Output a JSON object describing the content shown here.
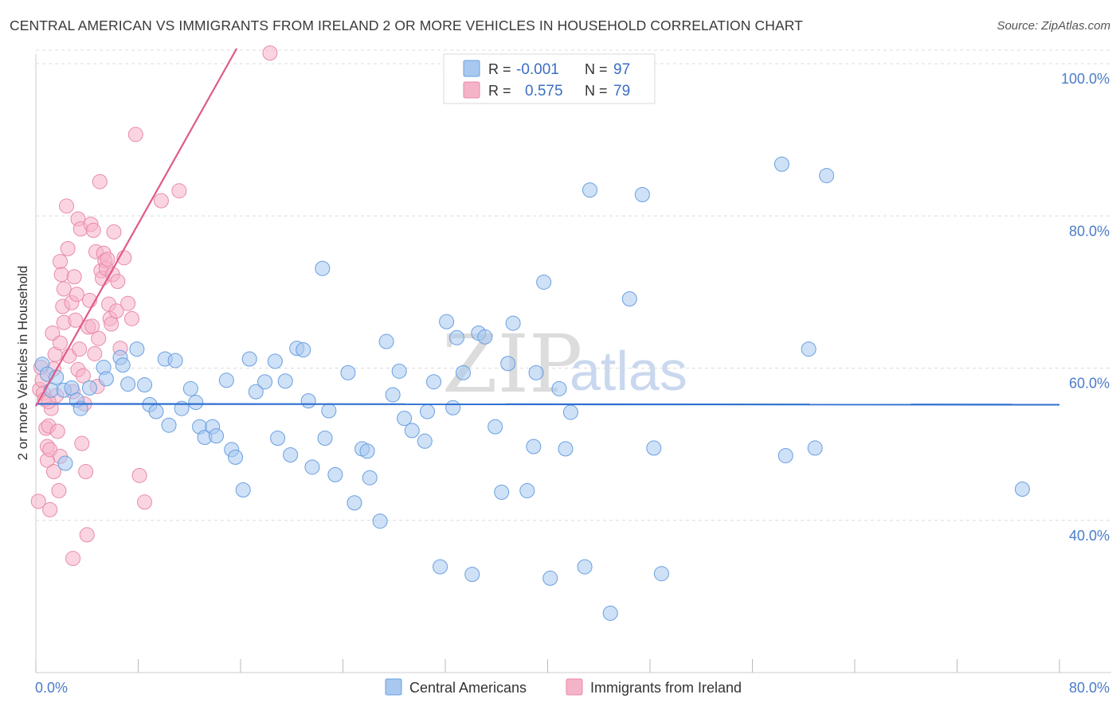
{
  "title": "CENTRAL AMERICAN VS IMMIGRANTS FROM IRELAND 2 OR MORE VEHICLES IN HOUSEHOLD CORRELATION CHART",
  "source": "Source: ZipAtlas.com",
  "watermark": {
    "zip": "ZIP",
    "atlas": "atlas"
  },
  "legend": {
    "rows": [
      {
        "r_label": "R =",
        "r_value": "-0.001",
        "n_label": "N =",
        "n_value": "97",
        "color": "#a8c8f0"
      },
      {
        "r_label": "R =",
        "r_value": "0.575",
        "n_label": "N =",
        "n_value": "79",
        "color": "#f5b3c8"
      }
    ]
  },
  "bottom_legend": [
    "Central Americans",
    "Immigrants from Ireland"
  ],
  "chart_data": {
    "type": "scatter",
    "xlabel": "",
    "ylabel": "2 or more Vehicles in Household",
    "xlim": [
      0,
      80
    ],
    "ylim": [
      20,
      100
    ],
    "x_tick_labels": [
      "0.0%",
      "80.0%"
    ],
    "y_ticks": [
      40,
      60,
      80,
      100
    ],
    "y_tick_labels": [
      "40.0%",
      "60.0%",
      "80.0%",
      "100.0%"
    ],
    "grid": true,
    "series": [
      {
        "name": "Central Americans",
        "color": "#a8c8f0",
        "stroke": "#6a9fe0",
        "trend": {
          "x": [
            0,
            80
          ],
          "y": [
            55.3,
            55.2
          ],
          "color": "#2f6fcf"
        },
        "points": [
          [
            0.5,
            60.5
          ],
          [
            0.9,
            59.2
          ],
          [
            1.2,
            57.1
          ],
          [
            1.6,
            58.8
          ],
          [
            2.2,
            57.1
          ],
          [
            2.3,
            47.5
          ],
          [
            2.8,
            57.4
          ],
          [
            3.2,
            55.8
          ],
          [
            3.5,
            54.7
          ],
          [
            4.2,
            57.4
          ],
          [
            5.3,
            60.1
          ],
          [
            5.5,
            58.6
          ],
          [
            6.6,
            61.4
          ],
          [
            6.8,
            60.4
          ],
          [
            7.2,
            57.9
          ],
          [
            7.9,
            62.5
          ],
          [
            8.5,
            57.8
          ],
          [
            8.9,
            55.2
          ],
          [
            9.4,
            54.3
          ],
          [
            10.1,
            61.2
          ],
          [
            10.4,
            52.5
          ],
          [
            10.9,
            61.0
          ],
          [
            11.4,
            54.7
          ],
          [
            12.1,
            57.3
          ],
          [
            12.5,
            55.5
          ],
          [
            12.8,
            52.3
          ],
          [
            13.2,
            50.9
          ],
          [
            13.8,
            52.3
          ],
          [
            14.1,
            51.1
          ],
          [
            14.9,
            58.4
          ],
          [
            15.3,
            49.3
          ],
          [
            15.6,
            48.3
          ],
          [
            16.2,
            44.0
          ],
          [
            16.7,
            61.2
          ],
          [
            17.2,
            56.9
          ],
          [
            17.9,
            58.2
          ],
          [
            18.7,
            60.9
          ],
          [
            18.9,
            50.8
          ],
          [
            19.5,
            58.3
          ],
          [
            19.9,
            48.6
          ],
          [
            20.4,
            62.6
          ],
          [
            20.9,
            62.4
          ],
          [
            21.3,
            55.7
          ],
          [
            21.6,
            47.0
          ],
          [
            22.4,
            73.1
          ],
          [
            22.6,
            50.8
          ],
          [
            22.9,
            54.4
          ],
          [
            23.4,
            46.0
          ],
          [
            24.4,
            59.4
          ],
          [
            24.9,
            42.3
          ],
          [
            25.5,
            49.4
          ],
          [
            25.9,
            49.1
          ],
          [
            26.1,
            45.6
          ],
          [
            26.9,
            39.9
          ],
          [
            27.4,
            63.5
          ],
          [
            27.9,
            56.5
          ],
          [
            28.4,
            59.6
          ],
          [
            28.8,
            53.4
          ],
          [
            29.4,
            51.8
          ],
          [
            30.4,
            50.4
          ],
          [
            30.6,
            54.3
          ],
          [
            31.1,
            58.2
          ],
          [
            31.6,
            33.9
          ],
          [
            32.1,
            66.1
          ],
          [
            32.6,
            54.8
          ],
          [
            32.9,
            64.0
          ],
          [
            33.4,
            59.4
          ],
          [
            34.1,
            32.9
          ],
          [
            34.6,
            64.6
          ],
          [
            35.1,
            64.1
          ],
          [
            35.9,
            52.3
          ],
          [
            36.4,
            43.7
          ],
          [
            36.9,
            60.6
          ],
          [
            37.3,
            65.9
          ],
          [
            38.4,
            43.9
          ],
          [
            38.9,
            49.7
          ],
          [
            39.1,
            59.4
          ],
          [
            39.7,
            71.3
          ],
          [
            40.2,
            32.4
          ],
          [
            40.9,
            57.3
          ],
          [
            41.4,
            49.4
          ],
          [
            41.8,
            54.2
          ],
          [
            42.9,
            33.9
          ],
          [
            43.3,
            83.4
          ],
          [
            44.9,
            27.8
          ],
          [
            46.4,
            69.1
          ],
          [
            47.4,
            82.8
          ],
          [
            48.3,
            49.5
          ],
          [
            48.9,
            33.0
          ],
          [
            58.3,
            86.8
          ],
          [
            58.6,
            48.5
          ],
          [
            60.4,
            62.5
          ],
          [
            60.9,
            49.5
          ],
          [
            61.8,
            85.3
          ],
          [
            77.1,
            44.1
          ]
        ]
      },
      {
        "name": "Immigrants from Ireland",
        "color": "#f5b3c8",
        "stroke": "#e98aa8",
        "trend": {
          "x": [
            0,
            15.7
          ],
          "y": [
            55.0,
            102.0
          ],
          "color": "#e05a86"
        },
        "points": [
          [
            0.2,
            42.5
          ],
          [
            0.3,
            57.2
          ],
          [
            0.4,
            60.1
          ],
          [
            0.5,
            58.4
          ],
          [
            0.6,
            56.7
          ],
          [
            0.7,
            55.9
          ],
          [
            0.8,
            52.1
          ],
          [
            0.9,
            49.7
          ],
          [
            0.9,
            47.9
          ],
          [
            1.0,
            52.4
          ],
          [
            1.1,
            41.4
          ],
          [
            1.1,
            49.3
          ],
          [
            1.2,
            54.7
          ],
          [
            1.3,
            64.6
          ],
          [
            1.4,
            46.4
          ],
          [
            1.4,
            59.9
          ],
          [
            1.5,
            61.8
          ],
          [
            1.6,
            56.4
          ],
          [
            1.7,
            51.7
          ],
          [
            1.8,
            43.9
          ],
          [
            1.9,
            63.3
          ],
          [
            1.9,
            48.4
          ],
          [
            1.9,
            74.0
          ],
          [
            2.0,
            72.3
          ],
          [
            2.1,
            68.1
          ],
          [
            2.2,
            70.4
          ],
          [
            2.2,
            66.0
          ],
          [
            2.4,
            81.3
          ],
          [
            2.5,
            75.7
          ],
          [
            2.6,
            61.6
          ],
          [
            2.8,
            68.6
          ],
          [
            2.9,
            56.9
          ],
          [
            3.0,
            72.0
          ],
          [
            3.1,
            66.3
          ],
          [
            3.2,
            69.7
          ],
          [
            3.3,
            79.6
          ],
          [
            3.3,
            59.8
          ],
          [
            3.4,
            62.5
          ],
          [
            3.5,
            78.3
          ],
          [
            3.6,
            50.1
          ],
          [
            3.7,
            59.0
          ],
          [
            3.8,
            55.3
          ],
          [
            3.9,
            46.4
          ],
          [
            4.0,
            38.1
          ],
          [
            4.1,
            65.4
          ],
          [
            4.2,
            68.9
          ],
          [
            4.3,
            78.9
          ],
          [
            4.4,
            65.5
          ],
          [
            4.5,
            78.1
          ],
          [
            4.6,
            61.9
          ],
          [
            4.7,
            75.3
          ],
          [
            4.8,
            57.6
          ],
          [
            4.9,
            63.9
          ],
          [
            5.0,
            84.5
          ],
          [
            5.1,
            72.8
          ],
          [
            5.2,
            71.8
          ],
          [
            5.3,
            75.1
          ],
          [
            5.4,
            74.1
          ],
          [
            5.5,
            73.1
          ],
          [
            5.6,
            74.3
          ],
          [
            5.7,
            68.4
          ],
          [
            5.8,
            66.5
          ],
          [
            5.9,
            65.8
          ],
          [
            6.0,
            72.3
          ],
          [
            6.1,
            77.9
          ],
          [
            6.3,
            67.5
          ],
          [
            6.4,
            71.4
          ],
          [
            6.6,
            62.6
          ],
          [
            6.9,
            74.5
          ],
          [
            7.2,
            68.5
          ],
          [
            7.5,
            66.5
          ],
          [
            7.8,
            90.7
          ],
          [
            8.1,
            45.9
          ],
          [
            8.5,
            42.4
          ],
          [
            9.8,
            82.0
          ],
          [
            11.2,
            83.3
          ],
          [
            18.3,
            101.4
          ],
          [
            2.9,
            35.0
          ],
          [
            1.0,
            55.6
          ]
        ]
      }
    ]
  }
}
